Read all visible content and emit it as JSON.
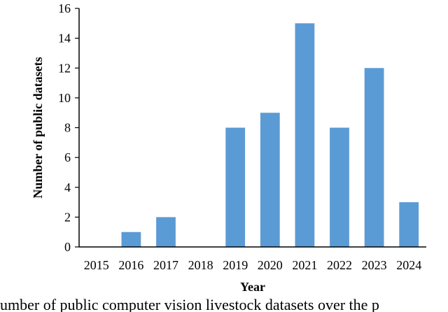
{
  "chart_data": {
    "type": "bar",
    "categories": [
      "2015",
      "2016",
      "2017",
      "2018",
      "2019",
      "2020",
      "2021",
      "2022",
      "2023",
      "2024"
    ],
    "values": [
      0,
      1,
      2,
      0,
      8,
      9,
      15,
      8,
      12,
      3
    ],
    "xlabel": "Year",
    "ylabel": "Number of public datasets",
    "ylim": [
      0,
      16
    ],
    "yticks": [
      0,
      2,
      4,
      6,
      8,
      10,
      12,
      14,
      16
    ],
    "grid": false,
    "legend": "none",
    "bar_color": "#5B9BD5"
  },
  "caption": "umber of public computer vision livestock datasets over the p"
}
